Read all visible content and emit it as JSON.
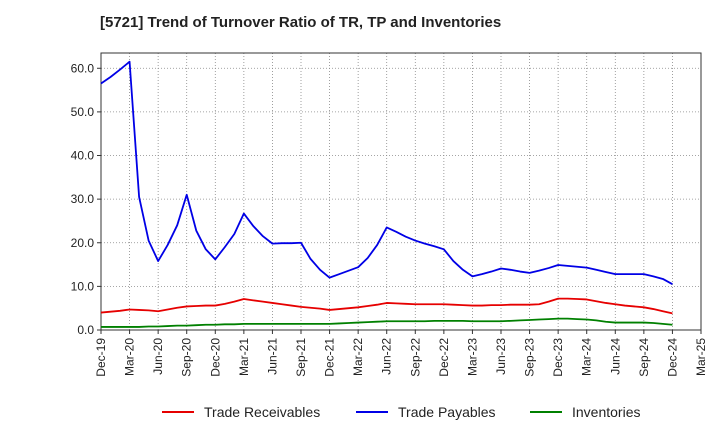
{
  "chart_data": {
    "type": "line",
    "title": "[5721]  Trend of Turnover Ratio of TR, TP and Inventories",
    "xlabel": "",
    "ylabel": "",
    "ylim": [
      0,
      63.5
    ],
    "yticks": [
      "0.0",
      "10.0",
      "20.0",
      "30.0",
      "40.0",
      "50.0",
      "60.0"
    ],
    "grid": true,
    "legend_position": "bottom",
    "x_tick_labels": [
      "Dec-19",
      "Mar-20",
      "Jun-20",
      "Sep-20",
      "Dec-20",
      "Mar-21",
      "Jun-21",
      "Sep-21",
      "Dec-21",
      "Mar-22",
      "Jun-22",
      "Sep-22",
      "Dec-22",
      "Mar-23",
      "Jun-23",
      "Sep-23",
      "Dec-23",
      "Mar-24",
      "Jun-24",
      "Sep-24",
      "Dec-24",
      "Mar-25"
    ],
    "x": [
      "Dec-19",
      "Jan-20",
      "Feb-20",
      "Mar-20",
      "Apr-20",
      "May-20",
      "Jun-20",
      "Jul-20",
      "Aug-20",
      "Sep-20",
      "Oct-20",
      "Nov-20",
      "Dec-20",
      "Jan-21",
      "Feb-21",
      "Mar-21",
      "Apr-21",
      "May-21",
      "Jun-21",
      "Jul-21",
      "Aug-21",
      "Sep-21",
      "Oct-21",
      "Nov-21",
      "Dec-21",
      "Jan-22",
      "Feb-22",
      "Mar-22",
      "Apr-22",
      "May-22",
      "Jun-22",
      "Jul-22",
      "Aug-22",
      "Sep-22",
      "Oct-22",
      "Nov-22",
      "Dec-22",
      "Jan-23",
      "Feb-23",
      "Mar-23",
      "Apr-23",
      "May-23",
      "Jun-23",
      "Jul-23",
      "Aug-23",
      "Sep-23",
      "Oct-23",
      "Nov-23",
      "Dec-23",
      "Jan-24",
      "Feb-24",
      "Mar-24",
      "Apr-24",
      "May-24",
      "Jun-24",
      "Jul-24",
      "Aug-24",
      "Sep-24",
      "Oct-24",
      "Nov-24",
      "Dec-24"
    ],
    "series": [
      {
        "name": "Trade Receivables",
        "color": "#e60000",
        "values": [
          4.0,
          4.2,
          4.4,
          4.7,
          4.6,
          4.5,
          4.3,
          4.7,
          5.1,
          5.4,
          5.5,
          5.6,
          5.6,
          6.0,
          6.5,
          7.1,
          6.8,
          6.5,
          6.2,
          5.9,
          5.6,
          5.3,
          5.1,
          4.9,
          4.6,
          4.8,
          5.0,
          5.2,
          5.5,
          5.8,
          6.2,
          6.1,
          6.0,
          5.9,
          5.9,
          5.9,
          5.9,
          5.8,
          5.7,
          5.6,
          5.6,
          5.7,
          5.7,
          5.8,
          5.8,
          5.8,
          5.9,
          6.5,
          7.2,
          7.2,
          7.1,
          7.0,
          6.6,
          6.2,
          5.9,
          5.6,
          5.4,
          5.2,
          4.8,
          4.3,
          3.8
        ]
      },
      {
        "name": "Trade Payables",
        "color": "#0000e6",
        "values": [
          56.5,
          58.0,
          59.7,
          61.5,
          30.5,
          20.5,
          15.8,
          19.5,
          24.0,
          31.0,
          22.8,
          18.5,
          16.2,
          19.0,
          22.0,
          26.7,
          23.8,
          21.5,
          19.8,
          19.9,
          19.9,
          20.0,
          16.3,
          13.8,
          12.0,
          12.8,
          13.6,
          14.4,
          16.5,
          19.5,
          23.5,
          22.5,
          21.4,
          20.5,
          19.8,
          19.2,
          18.5,
          15.8,
          13.8,
          12.3,
          12.8,
          13.4,
          14.1,
          13.8,
          13.4,
          13.1,
          13.6,
          14.2,
          14.9,
          14.7,
          14.5,
          14.3,
          13.8,
          13.3,
          12.8,
          12.8,
          12.8,
          12.8,
          12.3,
          11.7,
          10.5
        ]
      },
      {
        "name": "Inventories",
        "color": "#008000",
        "values": [
          0.7,
          0.7,
          0.7,
          0.7,
          0.7,
          0.8,
          0.8,
          0.9,
          1.0,
          1.0,
          1.1,
          1.2,
          1.2,
          1.3,
          1.3,
          1.4,
          1.4,
          1.4,
          1.4,
          1.4,
          1.4,
          1.4,
          1.4,
          1.4,
          1.4,
          1.5,
          1.6,
          1.7,
          1.8,
          1.9,
          2.0,
          2.0,
          2.0,
          2.0,
          2.0,
          2.1,
          2.1,
          2.1,
          2.1,
          2.0,
          2.0,
          2.0,
          2.0,
          2.1,
          2.2,
          2.3,
          2.4,
          2.5,
          2.6,
          2.6,
          2.5,
          2.4,
          2.2,
          1.9,
          1.7,
          1.7,
          1.7,
          1.7,
          1.6,
          1.4,
          1.2
        ]
      }
    ]
  }
}
